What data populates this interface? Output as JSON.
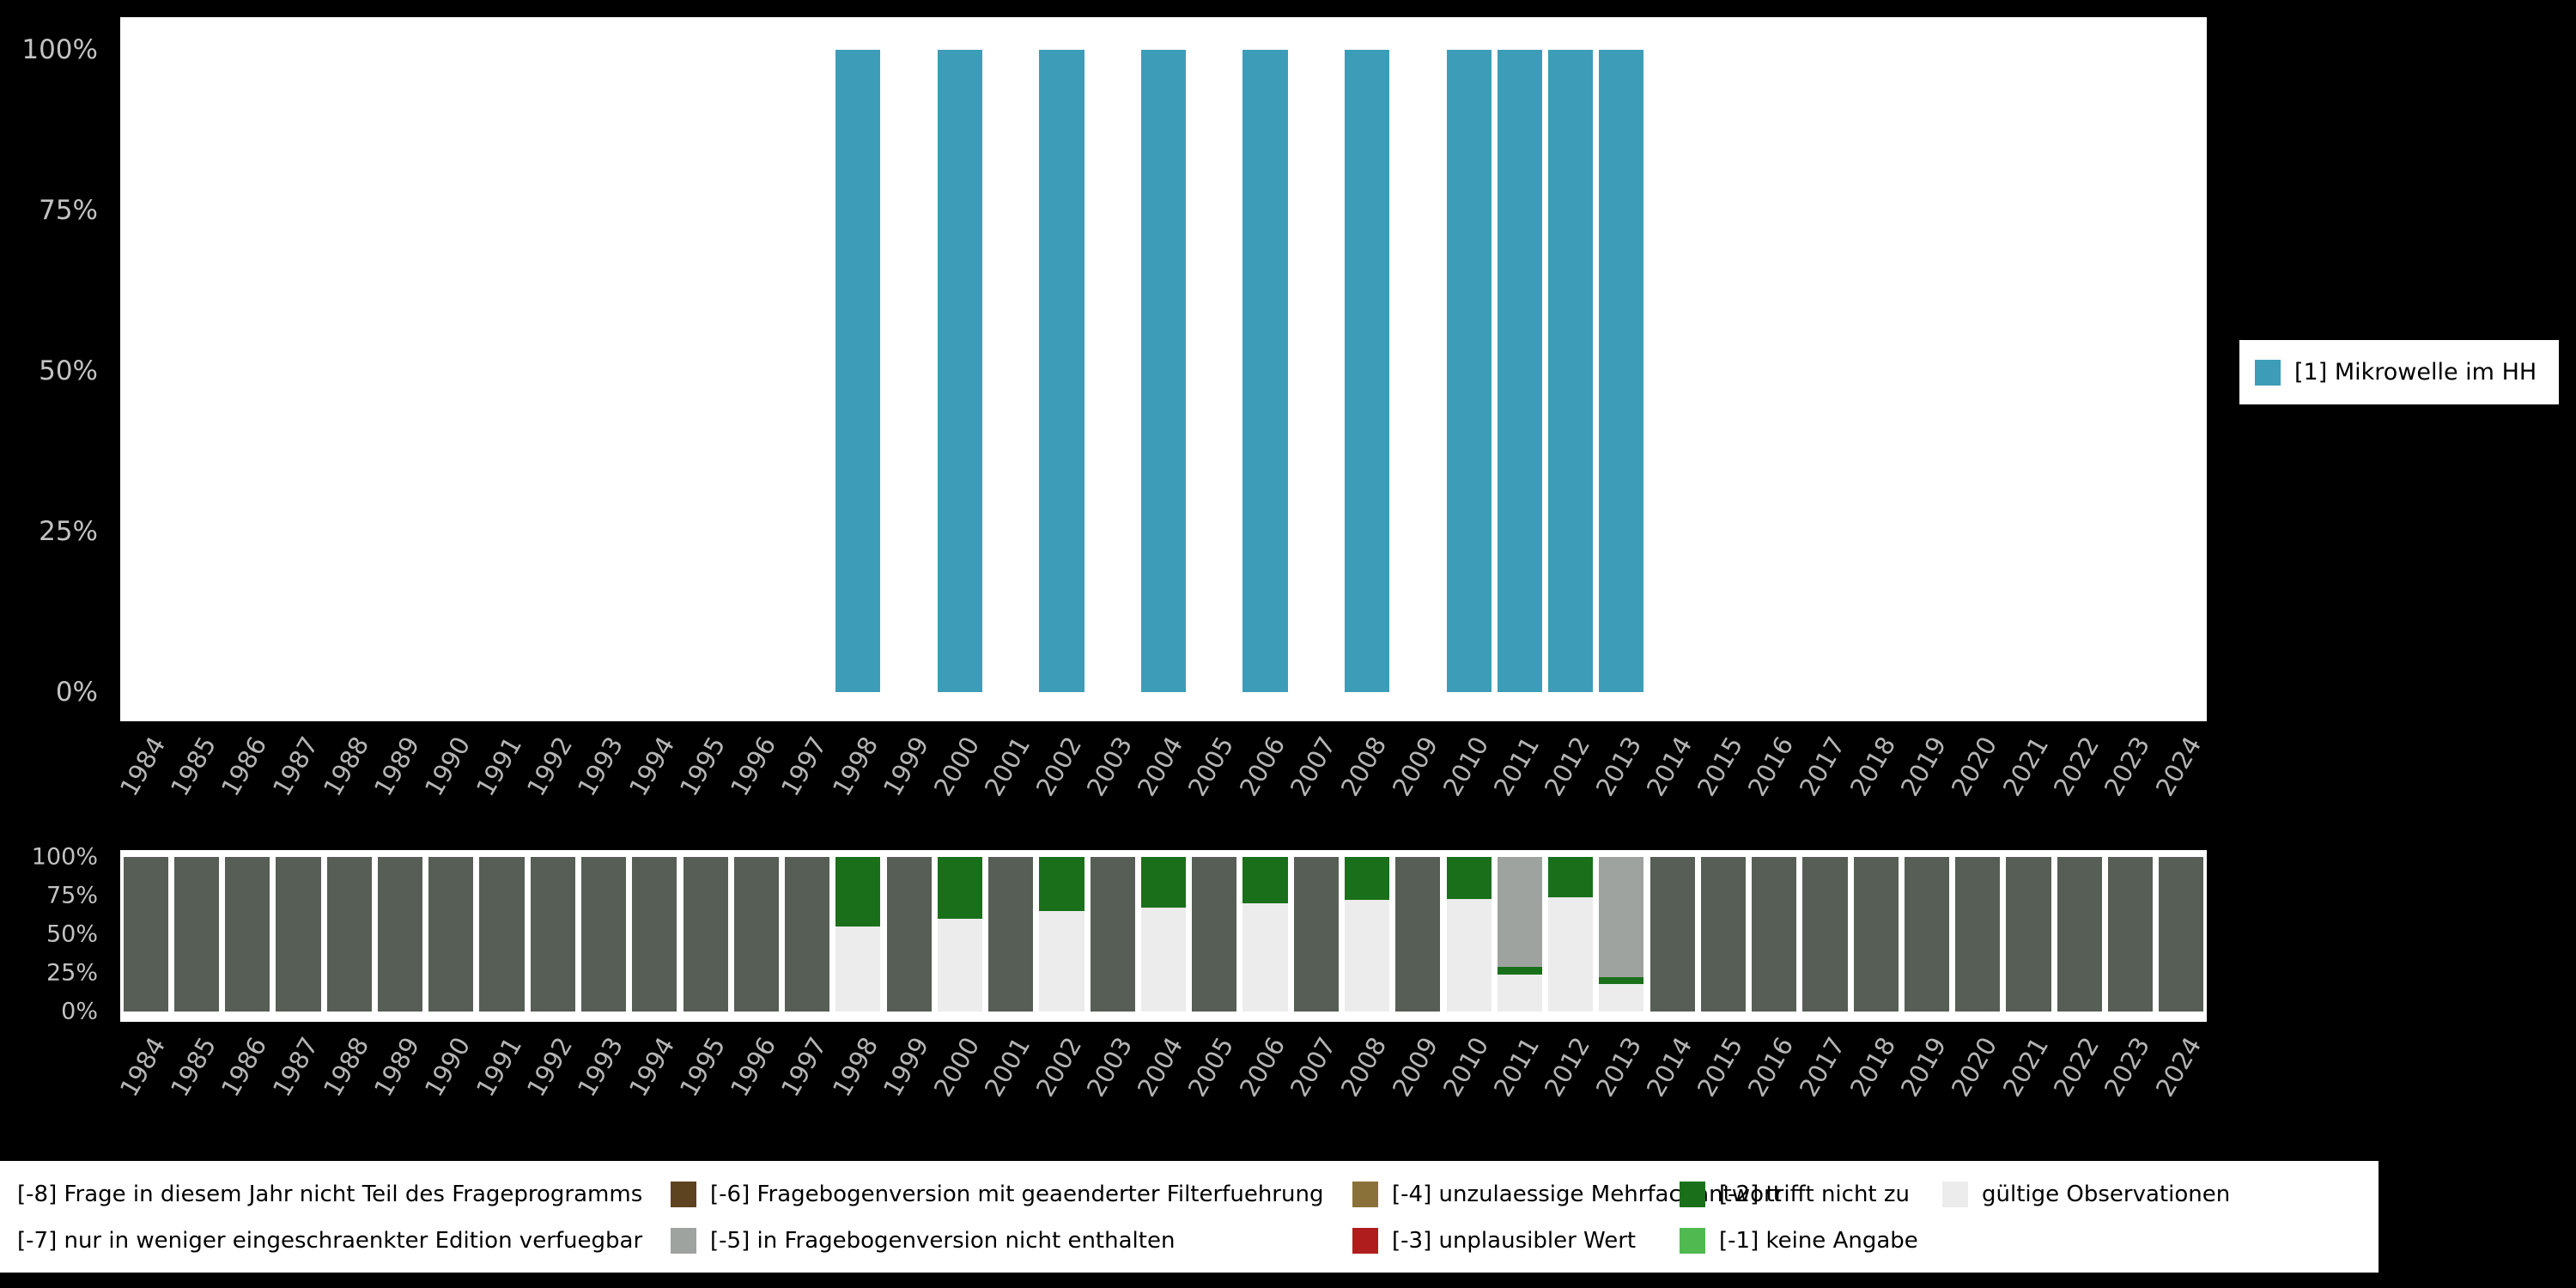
{
  "chart_data": [
    {
      "type": "bar",
      "name": "valid-values-by-year",
      "x_tick_labels": [
        "1984",
        "1985",
        "1986",
        "1987",
        "1988",
        "1989",
        "1990",
        "1991",
        "1992",
        "1993",
        "1994",
        "1995",
        "1996",
        "1997",
        "1998",
        "1999",
        "2000",
        "2001",
        "2002",
        "2003",
        "2004",
        "2005",
        "2006",
        "2007",
        "2008",
        "2009",
        "2010",
        "2011",
        "2012",
        "2013",
        "2014",
        "2015",
        "2016",
        "2017",
        "2018",
        "2019",
        "2020",
        "2021",
        "2022",
        "2023",
        "2024"
      ],
      "y_tick_labels": [
        "100%",
        "75%",
        "50%",
        "25%",
        "0%"
      ],
      "ylim": [
        0,
        100
      ],
      "unit": "percent",
      "grid": false,
      "legend_position": "right",
      "legend": [
        {
          "label": "[1] Mikrowelle im HH",
          "color": "#3d9db8"
        }
      ],
      "series": [
        {
          "name": "[1] Mikrowelle im HH",
          "color": "#3d9db8",
          "values": [
            0,
            0,
            0,
            0,
            0,
            0,
            0,
            0,
            0,
            0,
            0,
            0,
            0,
            0,
            100,
            0,
            100,
            0,
            100,
            0,
            100,
            0,
            100,
            0,
            100,
            0,
            100,
            100,
            100,
            100,
            0,
            0,
            0,
            0,
            0,
            0,
            0,
            0,
            0,
            0,
            0
          ]
        }
      ]
    },
    {
      "type": "stacked-bar",
      "name": "missing-values-by-year",
      "x_tick_labels": [
        "1984",
        "1985",
        "1986",
        "1987",
        "1988",
        "1989",
        "1990",
        "1991",
        "1992",
        "1993",
        "1994",
        "1995",
        "1996",
        "1997",
        "1998",
        "1999",
        "2000",
        "2001",
        "2002",
        "2003",
        "2004",
        "2005",
        "2006",
        "2007",
        "2008",
        "2009",
        "2010",
        "2011",
        "2012",
        "2013",
        "2014",
        "2015",
        "2016",
        "2017",
        "2018",
        "2019",
        "2020",
        "2021",
        "2022",
        "2023",
        "2024"
      ],
      "y_tick_labels": [
        "100%",
        "75%",
        "50%",
        "25%",
        "0%"
      ],
      "ylim": [
        0,
        100
      ],
      "unit": "percent",
      "stack_order": "bottom-to-top",
      "series": [
        {
          "name": "gültige Observationen",
          "color": "#ececec",
          "values": [
            0,
            0,
            0,
            0,
            0,
            0,
            0,
            0,
            0,
            0,
            0,
            0,
            0,
            0,
            55,
            0,
            60,
            0,
            65,
            0,
            67,
            0,
            70,
            0,
            72,
            0,
            73,
            24,
            74,
            18,
            0,
            0,
            0,
            0,
            0,
            0,
            0,
            0,
            0,
            0,
            0
          ]
        },
        {
          "name": "[-2] trifft nicht zu",
          "color": "#1a701a",
          "values": [
            0,
            0,
            0,
            0,
            0,
            0,
            0,
            0,
            0,
            0,
            0,
            0,
            0,
            0,
            45,
            0,
            40,
            0,
            35,
            0,
            33,
            0,
            30,
            0,
            28,
            0,
            27,
            5,
            26,
            4,
            0,
            0,
            0,
            0,
            0,
            0,
            0,
            0,
            0,
            0,
            0
          ]
        },
        {
          "name": "[-5] in Fragebogenversion nicht enthalten",
          "color": "#9fa39f",
          "values": [
            0,
            0,
            0,
            0,
            0,
            0,
            0,
            0,
            0,
            0,
            0,
            0,
            0,
            0,
            0,
            0,
            0,
            0,
            0,
            0,
            0,
            0,
            0,
            0,
            0,
            0,
            0,
            71,
            0,
            78,
            0,
            0,
            0,
            0,
            0,
            0,
            0,
            0,
            0,
            0,
            0
          ]
        },
        {
          "name": "[-8] Frage in diesem Jahr nicht Teil des Frageprogramms",
          "color": "#565e56",
          "values": [
            100,
            100,
            100,
            100,
            100,
            100,
            100,
            100,
            100,
            100,
            100,
            100,
            100,
            100,
            0,
            100,
            0,
            100,
            0,
            100,
            0,
            100,
            0,
            100,
            0,
            100,
            0,
            0,
            0,
            0,
            100,
            100,
            100,
            100,
            100,
            100,
            100,
            100,
            100,
            100,
            100
          ]
        }
      ]
    }
  ],
  "bottom_legend": {
    "rows": [
      [
        {
          "label": "[-8] Frage in diesem Jahr nicht Teil des Frageprogramms",
          "color": null
        },
        {
          "label": "[-6] Fragebogenversion mit geaenderter Filterfuehrung",
          "color": "#5e4320"
        },
        {
          "label": "[-4] unzulaessige Mehrfachantwort",
          "color": "#8a713a"
        },
        {
          "label": "[-2] trifft nicht zu",
          "color": "#1a701a"
        },
        {
          "label": "gültige Observationen",
          "color": "#ececec"
        }
      ],
      [
        {
          "label": "[-7] nur in weniger eingeschraenkter Edition verfuegbar",
          "color": null
        },
        {
          "label": "[-5] in Fragebogenversion nicht enthalten",
          "color": "#9fa39f"
        },
        {
          "label": "[-3] unplausibler Wert",
          "color": "#b01d1d"
        },
        {
          "label": "[-1] keine Angabe",
          "color": "#50b950"
        }
      ]
    ]
  }
}
